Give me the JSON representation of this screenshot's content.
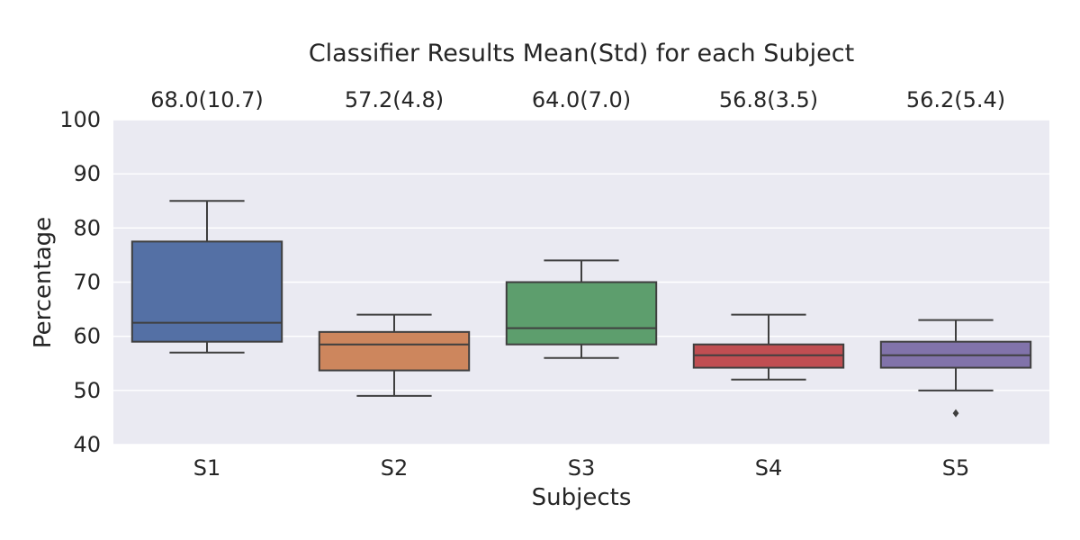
{
  "chart_data": {
    "type": "box",
    "title": "Classifier Results Mean(Std) for each Subject",
    "xlabel": "Subjects",
    "ylabel": "Percentage",
    "ylim": [
      40,
      100
    ],
    "yticks": [
      40,
      50,
      60,
      70,
      80,
      90,
      100
    ],
    "categories": [
      "S1",
      "S2",
      "S3",
      "S4",
      "S5"
    ],
    "stat_labels": [
      "68.0(10.7)",
      "57.2(4.8)",
      "64.0(7.0)",
      "56.8(3.5)",
      "56.2(5.4)"
    ],
    "boxes": [
      {
        "category": "S1",
        "whisker_low": 57,
        "q1": 59,
        "median": 62.5,
        "q3": 77.5,
        "whisker_high": 85,
        "outliers": [],
        "color": "#5470a5"
      },
      {
        "category": "S2",
        "whisker_low": 49,
        "q1": 53.7,
        "median": 58.5,
        "q3": 60.8,
        "whisker_high": 64,
        "outliers": [],
        "color": "#cd865d"
      },
      {
        "category": "S3",
        "whisker_low": 56,
        "q1": 58.5,
        "median": 61.5,
        "q3": 70,
        "whisker_high": 74,
        "outliers": [],
        "color": "#5d9e6d"
      },
      {
        "category": "S4",
        "whisker_low": 52,
        "q1": 54.2,
        "median": 56.5,
        "q3": 58.5,
        "whisker_high": 64,
        "outliers": [],
        "color": "#c04e52"
      },
      {
        "category": "S5",
        "whisker_low": 50,
        "q1": 54.2,
        "median": 56.5,
        "q3": 59,
        "whisker_high": 63,
        "outliers": [
          45.8
        ],
        "color": "#8173aa"
      }
    ],
    "grid": true,
    "colors": {
      "plot_background": "#eaeaf2",
      "grid": "#ffffff",
      "box_edge": "#3f3f3f"
    }
  }
}
